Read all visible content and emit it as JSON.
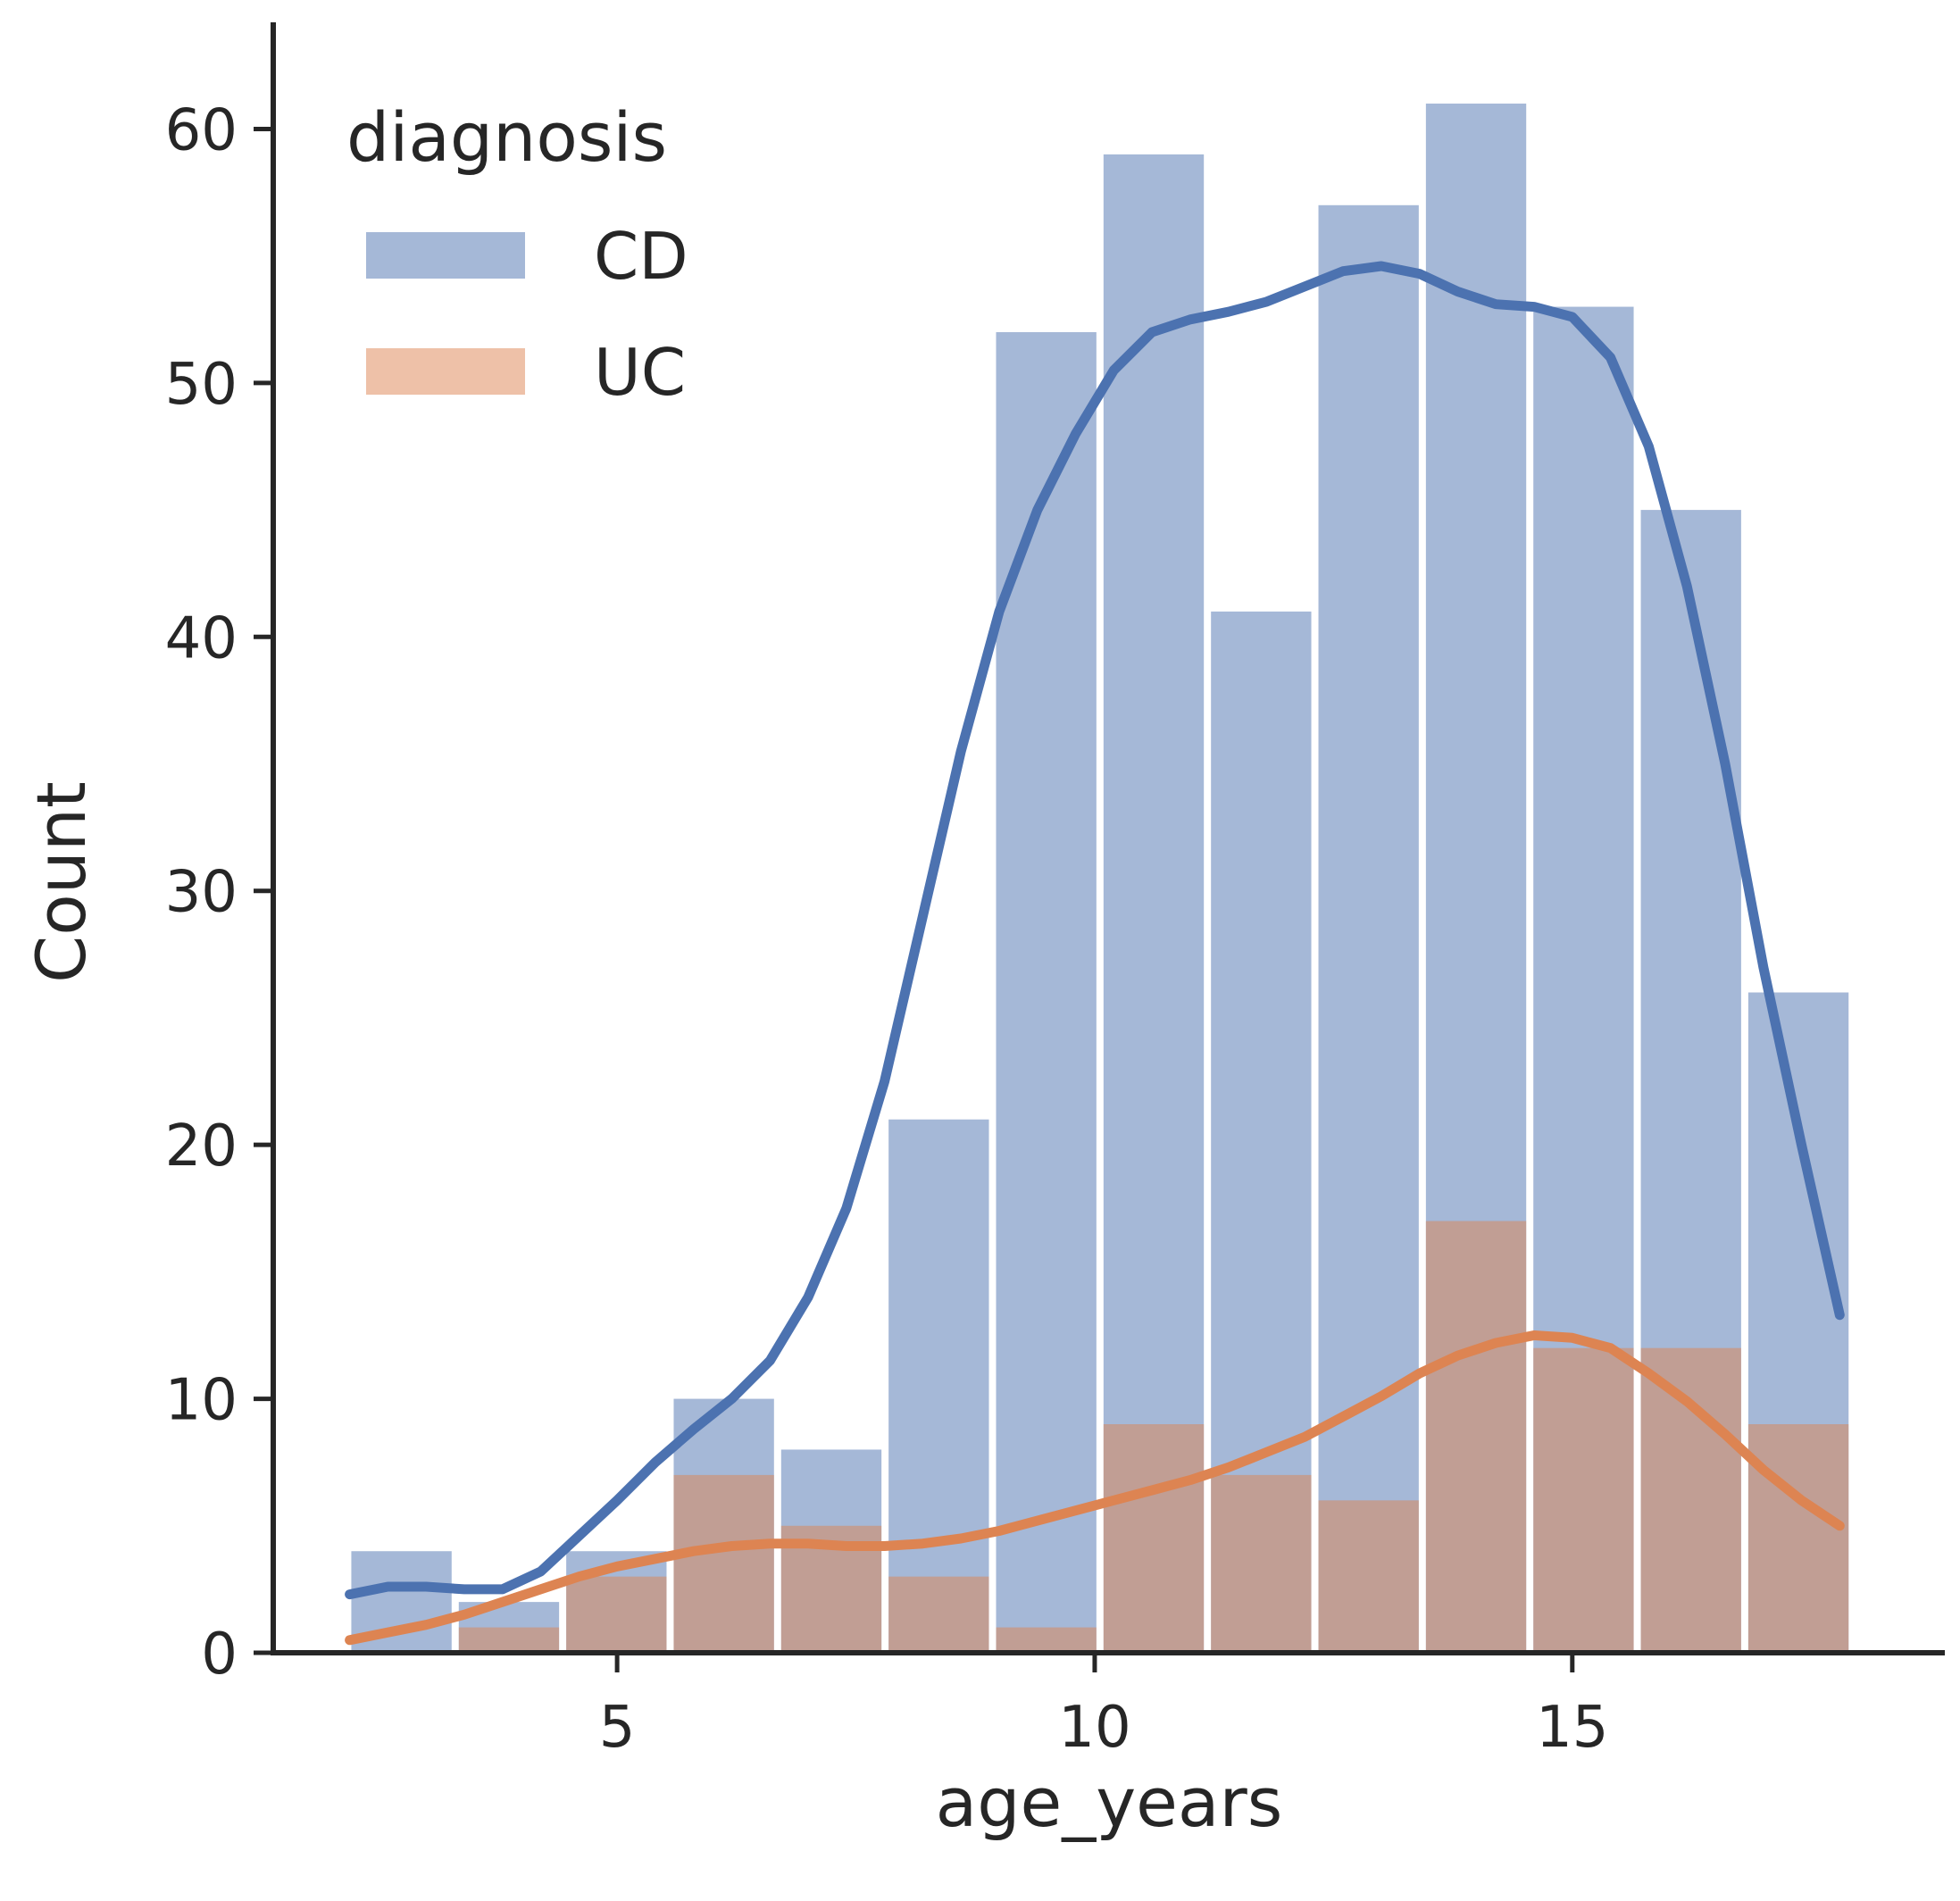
{
  "chart_data": {
    "type": "bar",
    "xlabel": "age_years",
    "ylabel": "Count",
    "xlim": [
      1.4,
      18.9
    ],
    "ylim": [
      0,
      64.2
    ],
    "x_ticks": [
      5,
      10,
      15
    ],
    "y_ticks": [
      0,
      10,
      20,
      30,
      40,
      50,
      60
    ],
    "grid": false,
    "legend": {
      "title": "diagnosis",
      "placement": "top-left"
    },
    "bins": {
      "start": 2.18,
      "width": 1.125,
      "count": 14
    },
    "series": [
      {
        "name": "CD",
        "color": "#4c72b0",
        "values": [
          4,
          2,
          4,
          10,
          8,
          21,
          52,
          59,
          41,
          57,
          61,
          53,
          45,
          26
        ],
        "kde": [
          [
            2.2,
            2.3
          ],
          [
            2.6,
            2.6
          ],
          [
            3.0,
            2.6
          ],
          [
            3.4,
            2.5
          ],
          [
            3.8,
            2.5
          ],
          [
            4.2,
            3.2
          ],
          [
            4.6,
            4.6
          ],
          [
            5.0,
            6.0
          ],
          [
            5.4,
            7.5
          ],
          [
            5.8,
            8.8
          ],
          [
            6.2,
            10.0
          ],
          [
            6.6,
            11.5
          ],
          [
            7.0,
            14.0
          ],
          [
            7.4,
            17.5
          ],
          [
            7.8,
            22.5
          ],
          [
            8.2,
            29.0
          ],
          [
            8.6,
            35.5
          ],
          [
            9.0,
            41.0
          ],
          [
            9.4,
            45.0
          ],
          [
            9.8,
            48.0
          ],
          [
            10.2,
            50.5
          ],
          [
            10.6,
            52.0
          ],
          [
            11.0,
            52.5
          ],
          [
            11.4,
            52.8
          ],
          [
            11.8,
            53.2
          ],
          [
            12.2,
            53.8
          ],
          [
            12.6,
            54.4
          ],
          [
            13.0,
            54.6
          ],
          [
            13.4,
            54.3
          ],
          [
            13.8,
            53.6
          ],
          [
            14.2,
            53.1
          ],
          [
            14.6,
            53.0
          ],
          [
            15.0,
            52.6
          ],
          [
            15.4,
            51.0
          ],
          [
            15.8,
            47.5
          ],
          [
            16.2,
            42.0
          ],
          [
            16.6,
            35.0
          ],
          [
            17.0,
            27.0
          ],
          [
            17.4,
            20.0
          ],
          [
            17.8,
            13.3
          ]
        ]
      },
      {
        "name": "UC",
        "color": "#dd8452",
        "values": [
          0,
          1,
          3,
          7,
          5,
          3,
          1,
          9,
          7,
          6,
          17,
          12,
          12,
          9
        ],
        "kde": [
          [
            2.2,
            0.5
          ],
          [
            2.6,
            0.8
          ],
          [
            3.0,
            1.1
          ],
          [
            3.4,
            1.5
          ],
          [
            3.8,
            2.0
          ],
          [
            4.2,
            2.5
          ],
          [
            4.6,
            3.0
          ],
          [
            5.0,
            3.4
          ],
          [
            5.4,
            3.7
          ],
          [
            5.8,
            4.0
          ],
          [
            6.2,
            4.2
          ],
          [
            6.6,
            4.3
          ],
          [
            7.0,
            4.3
          ],
          [
            7.4,
            4.2
          ],
          [
            7.8,
            4.2
          ],
          [
            8.2,
            4.3
          ],
          [
            8.6,
            4.5
          ],
          [
            9.0,
            4.8
          ],
          [
            9.4,
            5.2
          ],
          [
            9.8,
            5.6
          ],
          [
            10.2,
            6.0
          ],
          [
            10.6,
            6.4
          ],
          [
            11.0,
            6.8
          ],
          [
            11.4,
            7.3
          ],
          [
            11.8,
            7.9
          ],
          [
            12.2,
            8.5
          ],
          [
            12.6,
            9.3
          ],
          [
            13.0,
            10.1
          ],
          [
            13.4,
            11.0
          ],
          [
            13.8,
            11.7
          ],
          [
            14.2,
            12.2
          ],
          [
            14.6,
            12.5
          ],
          [
            15.0,
            12.4
          ],
          [
            15.4,
            12.0
          ],
          [
            15.8,
            11.0
          ],
          [
            16.2,
            9.9
          ],
          [
            16.6,
            8.6
          ],
          [
            17.0,
            7.2
          ],
          [
            17.4,
            6.0
          ],
          [
            17.8,
            5.0
          ]
        ]
      }
    ]
  }
}
